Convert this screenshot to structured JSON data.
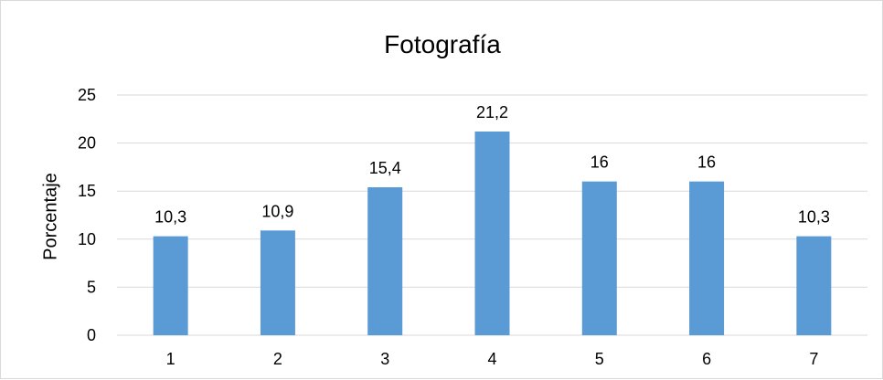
{
  "chart_data": {
    "type": "bar",
    "title": "Fotografía",
    "xlabel": "",
    "ylabel": "Porcentaje",
    "categories": [
      "1",
      "2",
      "3",
      "4",
      "5",
      "6",
      "7"
    ],
    "values": [
      10.3,
      10.9,
      15.4,
      21.2,
      16,
      16,
      10.3
    ],
    "data_labels": [
      "10,3",
      "10,9",
      "15,4",
      "21,2",
      "16",
      "16",
      "10,3"
    ],
    "yticks": [
      0,
      5,
      10,
      15,
      20,
      25
    ],
    "ylim": [
      0,
      25
    ],
    "grid": true,
    "legend": "none",
    "colors": {
      "bar": "#5b9bd5",
      "grid": "#d9d9d9",
      "text": "#000000"
    }
  }
}
